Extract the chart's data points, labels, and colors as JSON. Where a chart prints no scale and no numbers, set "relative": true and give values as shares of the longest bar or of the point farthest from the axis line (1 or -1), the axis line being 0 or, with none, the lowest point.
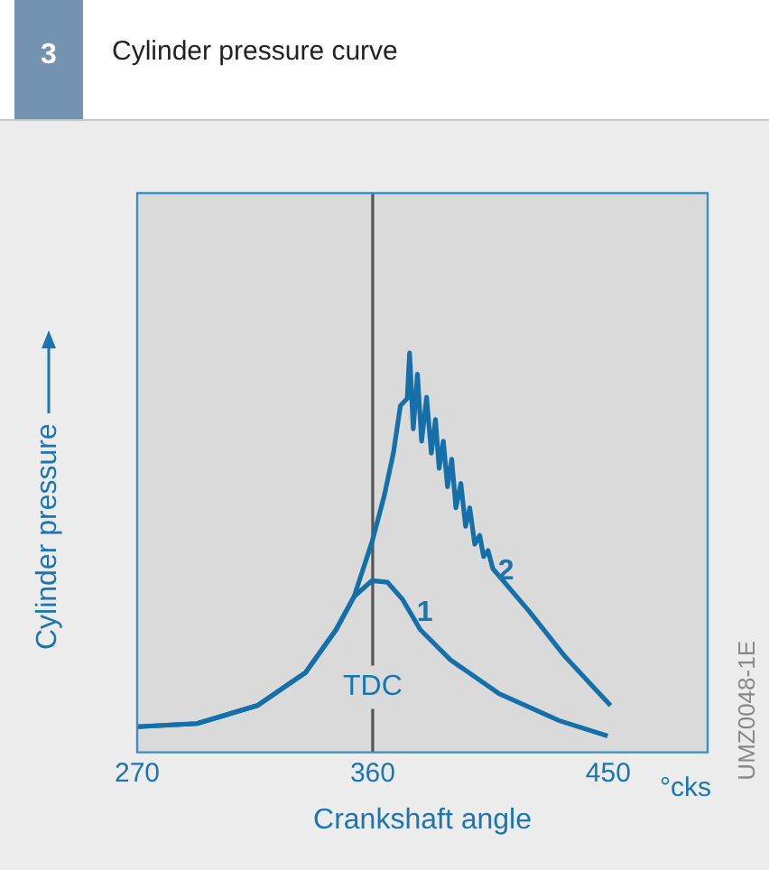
{
  "chart_data": {
    "type": "line",
    "title": "Cylinder pressure curve",
    "xlabel": "Crankshaft angle",
    "ylabel": "Cylinder pressure",
    "relative": true,
    "xlim": [
      270,
      488
    ],
    "xticks": [
      270,
      360,
      450
    ],
    "annotations": [
      "3",
      "°cks",
      "UMZ0048-1E"
    ],
    "ref_lines": [
      {
        "axis": "x",
        "value": 360,
        "label": "TDC",
        "color": "#555555"
      }
    ],
    "series": [
      {
        "name": "1",
        "color": "#1570aa",
        "x": [
          270,
          292.8,
          315.9,
          334.4,
          346,
          352.9,
          359.8,
          365.6,
          371.3,
          378.2,
          389.8,
          408.3,
          431.4,
          449.8
        ],
        "values": [
          0.064,
          0.072,
          0.117,
          0.2,
          0.307,
          0.39,
          0.43,
          0.426,
          0.384,
          0.307,
          0.231,
          0.147,
          0.079,
          0.041
        ]
      },
      {
        "name": "2",
        "color": "#1570aa",
        "x": [
          270,
          292.8,
          315.9,
          334.4,
          346,
          352.9,
          359.8,
          364.4,
          367.9,
          370.6,
          373.2,
          374.1,
          375.5,
          377.1,
          378.7,
          380.6,
          382.4,
          384,
          385.4,
          387,
          388.6,
          390.2,
          391.8,
          393.7,
          395.5,
          397.1,
          399,
          400.9,
          402.4,
          404.1,
          405.9,
          419.8,
          433.6,
          450.9
        ],
        "values": [
          0.064,
          0.072,
          0.117,
          0.2,
          0.307,
          0.39,
          0.528,
          0.642,
          0.749,
          0.868,
          0.886,
          1.0,
          0.81,
          0.947,
          0.779,
          0.889,
          0.749,
          0.833,
          0.711,
          0.779,
          0.665,
          0.734,
          0.612,
          0.673,
          0.566,
          0.612,
          0.521,
          0.543,
          0.49,
          0.505,
          0.46,
          0.353,
          0.239,
          0.117
        ]
      }
    ]
  }
}
